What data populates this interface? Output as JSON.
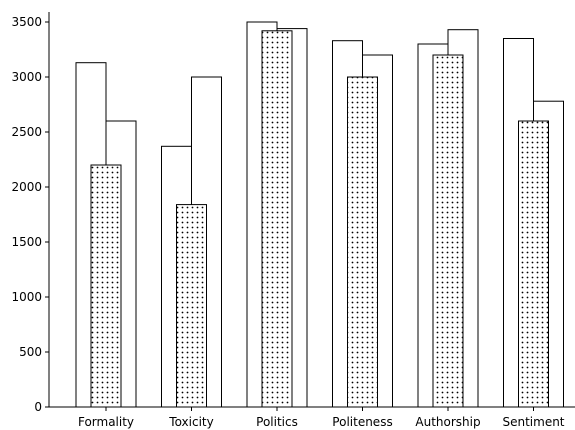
{
  "chart_data": {
    "type": "bar",
    "title": "",
    "xlabel": "",
    "ylabel": "",
    "categories": [
      "Formality",
      "Toxicity",
      "Politics",
      "Politeness",
      "Authorship",
      "Sentiment"
    ],
    "ylim": [
      0,
      3600
    ],
    "yticks": [
      0,
      500,
      1000,
      1500,
      2000,
      2500,
      3000,
      3500
    ],
    "series": [
      {
        "values": [
          3130,
          2370,
          3500,
          3330,
          3300,
          3350
        ],
        "fill": "#ffffff",
        "pattern": "none"
      },
      {
        "values": [
          2600,
          3000,
          3440,
          3200,
          3430,
          2780
        ],
        "fill": "#ffffff",
        "pattern": "none"
      },
      {
        "values": [
          2200,
          1840,
          3420,
          3000,
          3200,
          2600
        ],
        "fill": "#ffffff",
        "pattern": "dots"
      }
    ],
    "grid": false,
    "legend": "none"
  }
}
